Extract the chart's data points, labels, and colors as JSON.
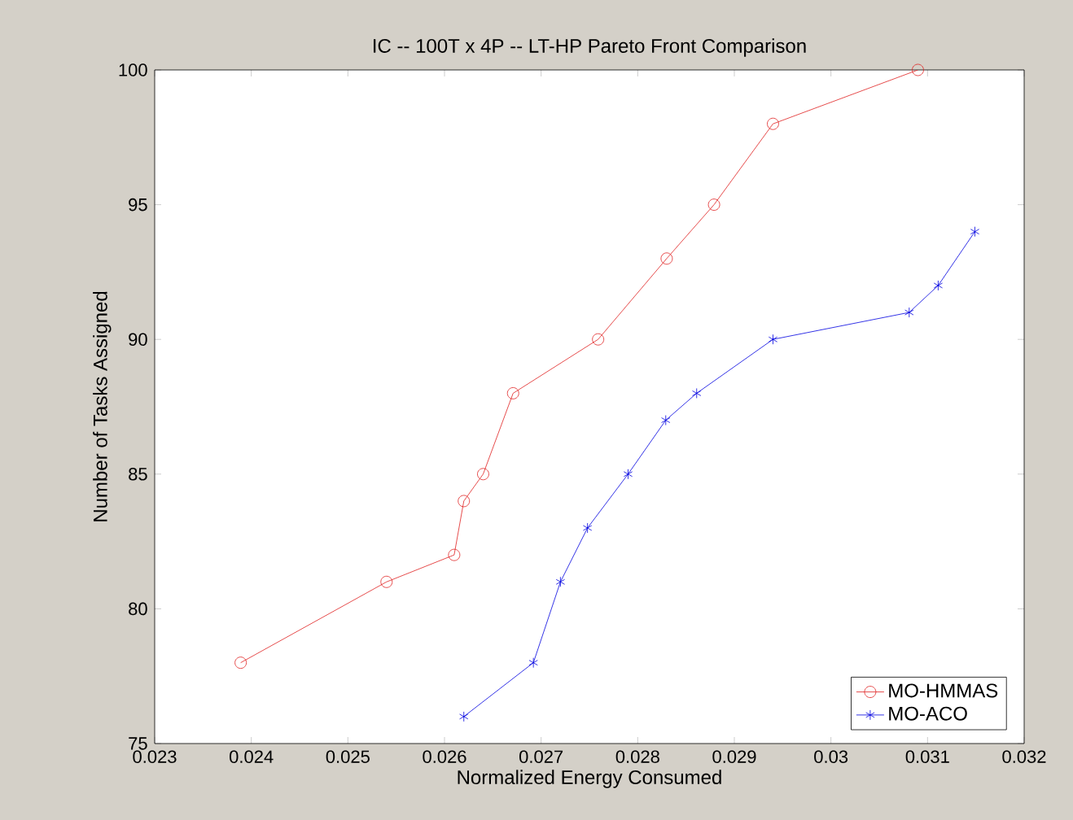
{
  "chart_data": {
    "type": "line",
    "title": "IC -- 100T x 4P -- LT-HP Pareto Front Comparison",
    "xlabel": "Normalized Energy Consumed",
    "ylabel": "Number of Tasks Assigned",
    "xlim": [
      0.023,
      0.032
    ],
    "ylim": [
      75,
      100
    ],
    "xticks": [
      0.023,
      0.024,
      0.025,
      0.026,
      0.027,
      0.028,
      0.029,
      0.03,
      0.031,
      0.032
    ],
    "yticks": [
      75,
      80,
      85,
      90,
      95,
      100
    ],
    "grid": false,
    "legend": "bottom right",
    "series": [
      {
        "name": "MO-HMMAS",
        "color": "#e02020",
        "marker": "circle",
        "x": [
          0.02389,
          0.0254,
          0.0261,
          0.0262,
          0.0264,
          0.02671,
          0.02759,
          0.0283,
          0.02879,
          0.0294,
          0.0309
        ],
        "values": [
          78,
          81,
          82,
          84,
          85,
          88,
          90,
          93,
          95,
          98,
          100
        ]
      },
      {
        "name": "MO-ACO",
        "color": "#0000e0",
        "marker": "cross",
        "x": [
          0.0262,
          0.02692,
          0.0272,
          0.02748,
          0.0279,
          0.02829,
          0.02861,
          0.0294,
          0.03081,
          0.03111,
          0.03149
        ],
        "values": [
          76,
          78,
          81,
          83,
          85,
          87,
          88,
          90,
          91,
          92,
          94
        ]
      }
    ]
  }
}
